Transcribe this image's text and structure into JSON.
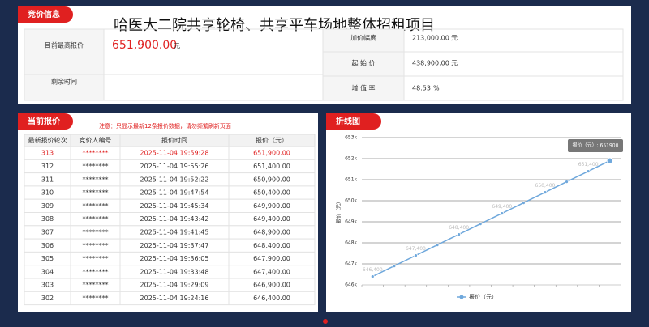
{
  "header": {
    "tab": "竞价信息",
    "title": "哈医大二院共享轮椅、共享平车场地整体招租项目"
  },
  "bid_info": {
    "current_label": "目前最高报价",
    "current_value": "651,900.00",
    "current_unit": "元",
    "remaining_label": "剩余时间",
    "increment_label": "加价幅度",
    "increment_value": "213,000.00",
    "increment_unit": "元",
    "start_label": "起 始 价",
    "start_value": "438,900.00",
    "start_unit": "元",
    "rate_label": "增 值 率",
    "rate_value": "48.53",
    "rate_unit": "%"
  },
  "table": {
    "tab": "当前报价",
    "note": "注意：只显示最新12条报价数据，请勿频繁刷新页面",
    "columns": [
      "最新报价轮次",
      "竞价人编号",
      "报价时间",
      "报价（元）"
    ],
    "rows": [
      [
        "313",
        "********",
        "2025-11-04 19:59:28",
        "651,900.00"
      ],
      [
        "312",
        "********",
        "2025-11-04 19:55:26",
        "651,400.00"
      ],
      [
        "311",
        "********",
        "2025-11-04 19:52:22",
        "650,900.00"
      ],
      [
        "310",
        "********",
        "2025-11-04 19:47:54",
        "650,400.00"
      ],
      [
        "309",
        "********",
        "2025-11-04 19:45:34",
        "649,900.00"
      ],
      [
        "308",
        "********",
        "2025-11-04 19:43:42",
        "649,400.00"
      ],
      [
        "307",
        "********",
        "2025-11-04 19:41:45",
        "648,900.00"
      ],
      [
        "306",
        "********",
        "2025-11-04 19:37:47",
        "648,400.00"
      ],
      [
        "305",
        "********",
        "2025-11-04 19:36:05",
        "647,900.00"
      ],
      [
        "304",
        "********",
        "2025-11-04 19:33:48",
        "647,400.00"
      ],
      [
        "303",
        "********",
        "2025-11-04 19:29:09",
        "646,900.00"
      ],
      [
        "302",
        "********",
        "2025-11-04 19:24:16",
        "646,400.00"
      ]
    ]
  },
  "chart_data": {
    "type": "line",
    "tab": "折线图",
    "y_label": "报价（元）",
    "categories": [
      null,
      null,
      null,
      null,
      null,
      null,
      null,
      null,
      null,
      null,
      null,
      null
    ],
    "series": [
      {
        "name": "报价（元）",
        "color": "#6fa8dc",
        "values": [
          646400,
          646900,
          647400,
          647900,
          648400,
          648900,
          649400,
          649900,
          650400,
          650900,
          651400,
          651900
        ],
        "value_labels": [
          "646,400",
          null,
          "647,400",
          null,
          "648,400",
          null,
          "649,400",
          null,
          "650,400",
          null,
          "651,400",
          null
        ]
      }
    ],
    "ylim": [
      646000,
      653000
    ],
    "yticks": [
      {
        "value": 646000,
        "label": "646k"
      },
      {
        "value": 647000,
        "label": "647k"
      },
      {
        "value": 648000,
        "label": "648k"
      },
      {
        "value": 649000,
        "label": "649k"
      },
      {
        "value": 650000,
        "label": "650k"
      },
      {
        "value": 651000,
        "label": "651k"
      },
      {
        "value": 652000,
        "label": "652k"
      },
      {
        "value": 653000,
        "label": "653k"
      }
    ],
    "grid": true,
    "tooltip": "报价（元）: 651900"
  }
}
